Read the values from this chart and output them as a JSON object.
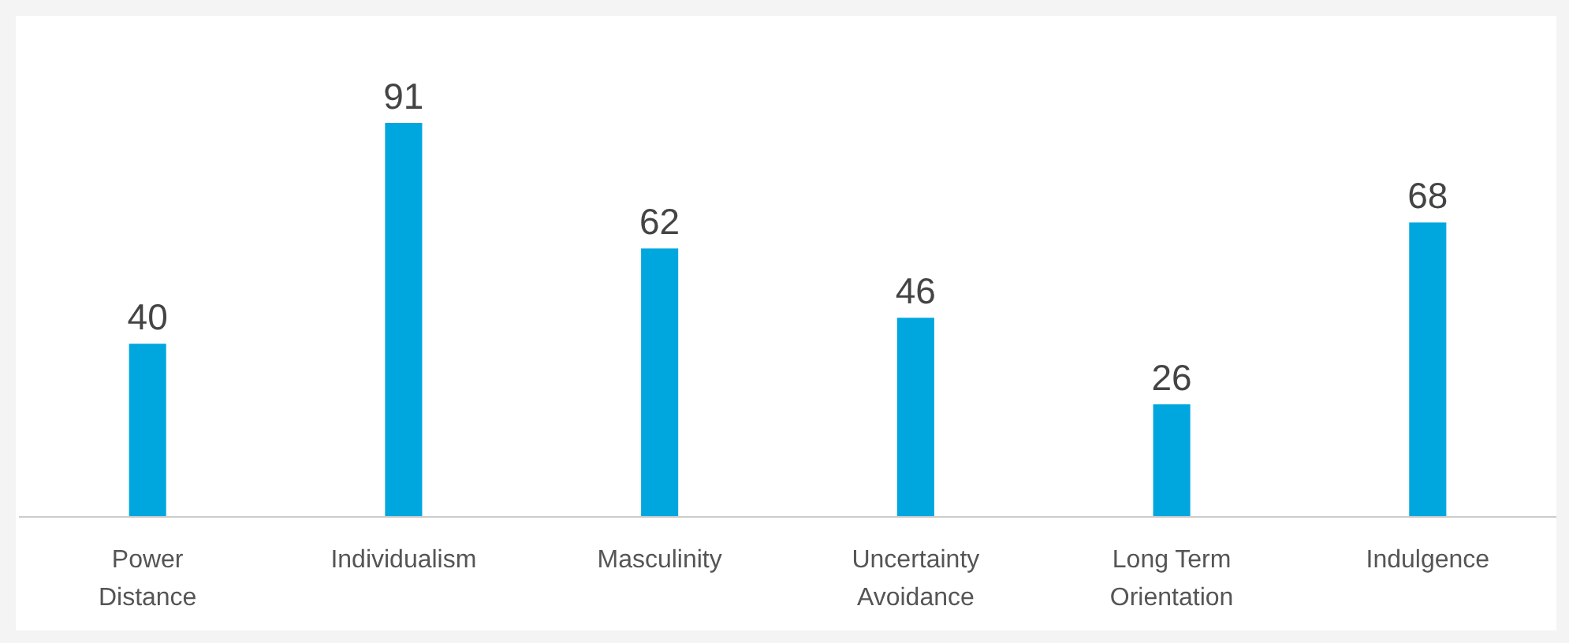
{
  "chart_data": {
    "type": "bar",
    "categories": [
      "Power Distance",
      "Individualism",
      "Masculinity",
      "Uncertainty Avoidance",
      "Long Term Orientation",
      "Indulgence"
    ],
    "values": [
      40,
      91,
      62,
      46,
      26,
      68
    ],
    "color": "#00a6de",
    "data_labels": true
  }
}
